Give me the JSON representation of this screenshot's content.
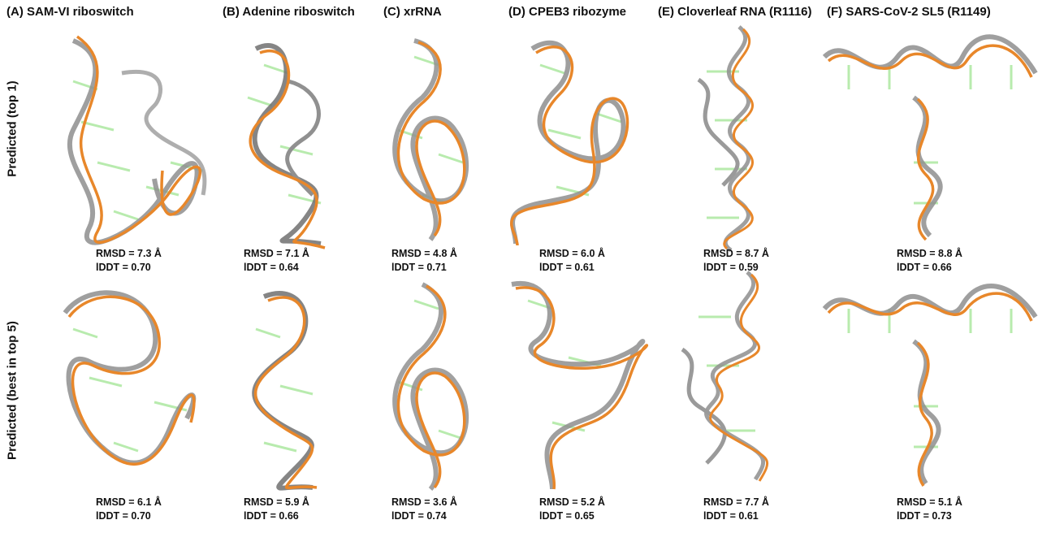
{
  "columns": [
    {
      "id": "A",
      "title": "(A) SAM-VI riboswitch"
    },
    {
      "id": "B",
      "title": "(B) Adenine riboswitch"
    },
    {
      "id": "C",
      "title": "(C) xrRNA"
    },
    {
      "id": "D",
      "title": "(D) CPEB3 ribozyme"
    },
    {
      "id": "E",
      "title": "(E) Cloverleaf RNA (R1116)"
    },
    {
      "id": "F",
      "title": "(F) SARS-CoV-2 SL5 (R1149)"
    }
  ],
  "rows": [
    {
      "label": "Predicted  (top 1)"
    },
    {
      "label": "Predicted  (best in top 5)"
    }
  ],
  "metrics": {
    "top1": [
      {
        "rmsd": "RMSD = 7.3 Å",
        "lddt": "lDDT = 0.70"
      },
      {
        "rmsd": "RMSD = 7.1 Å",
        "lddt": "lDDT = 0.64"
      },
      {
        "rmsd": "RMSD = 4.8 Å",
        "lddt": "lDDT = 0.71"
      },
      {
        "rmsd": "RMSD = 6.0 Å",
        "lddt": "lDDT = 0.61"
      },
      {
        "rmsd": "RMSD = 8.7 Å",
        "lddt": "lDDT = 0.59"
      },
      {
        "rmsd": "RMSD = 8.8 Å",
        "lddt": "lDDT = 0.66"
      }
    ],
    "top5": [
      {
        "rmsd": "RMSD = 6.1 Å",
        "lddt": "lDDT = 0.70"
      },
      {
        "rmsd": "RMSD = 5.9 Å",
        "lddt": "lDDT = 0.66"
      },
      {
        "rmsd": "RMSD = 3.6 Å",
        "lddt": "lDDT = 0.74"
      },
      {
        "rmsd": "RMSD = 5.2 Å",
        "lddt": "lDDT = 0.65"
      },
      {
        "rmsd": "RMSD = 7.7 Å",
        "lddt": "lDDT = 0.61"
      },
      {
        "rmsd": "RMSD = 5.1 Å",
        "lddt": "lDDT = 0.73"
      }
    ]
  },
  "colors": {
    "predicted": "#e8872a",
    "reference": "#8e8e8e",
    "bases": "#9be38c"
  }
}
